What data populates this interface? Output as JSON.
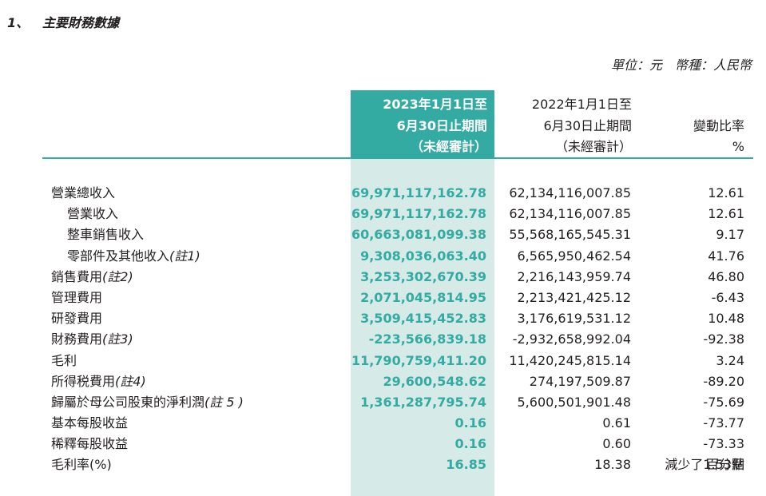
{
  "section": {
    "number": "1、",
    "title": "主要財務數據"
  },
  "unit_line": "單位：元　幣種：人民幣",
  "headers": {
    "current": [
      "2023年1月1日至",
      "6月30日止期間",
      "（未經審計）"
    ],
    "previous": [
      "2022年1月1日至",
      "6月30日止期間",
      "（未經審計）"
    ],
    "change": [
      "變動比率",
      "%"
    ]
  },
  "rows": [
    {
      "label": "營業總收入",
      "note": "",
      "current": "69,971,117,162.78",
      "previous": "62,134,116,007.85",
      "change": "12.61"
    },
    {
      "label": "營業收入",
      "note": "",
      "current": "69,971,117,162.78",
      "previous": "62,134,116,007.85",
      "change": "12.61"
    },
    {
      "label": "整車銷售收入",
      "note": "",
      "current": "60,663,081,099.38",
      "previous": "55,568,165,545.31",
      "change": "9.17"
    },
    {
      "label": "零部件及其他收入",
      "note": "(註1)",
      "current": "9,308,036,063.40",
      "previous": "6,565,950,462.54",
      "change": "41.76"
    },
    {
      "label": "銷售費用",
      "note": "(註2)",
      "current": "3,253,302,670.39",
      "previous": "2,216,143,959.74",
      "change": "46.80"
    },
    {
      "label": "管理費用",
      "note": "",
      "current": "2,071,045,814.95",
      "previous": "2,213,421,425.12",
      "change": "-6.43"
    },
    {
      "label": "研發費用",
      "note": "",
      "current": "3,509,415,452.83",
      "previous": "3,176,619,531.12",
      "change": "10.48"
    },
    {
      "label": "財務費用",
      "note": "(註3)",
      "current": "-223,566,839.18",
      "previous": "-2,932,658,992.04",
      "change": "-92.38"
    },
    {
      "label": "毛利",
      "note": "",
      "current": "11,790,759,411.20",
      "previous": "11,420,245,815.14",
      "change": "3.24"
    },
    {
      "label": "所得税費用",
      "note": "(註4)",
      "current": "29,600,548.62",
      "previous": "274,197,509.87",
      "change": "-89.20"
    },
    {
      "label": "歸屬於母公司股東的淨利潤",
      "note": "(註 5 )",
      "current": "1,361,287,795.74",
      "previous": "5,600,501,901.48",
      "change": "-75.69"
    },
    {
      "label": "基本每股收益",
      "note": "",
      "current": "0.16",
      "previous": "0.61",
      "change": "-73.77"
    },
    {
      "label": "稀釋每股收益",
      "note": "",
      "current": "0.16",
      "previous": "0.60",
      "change": "-73.33"
    },
    {
      "label": "毛利率(%)",
      "note": "",
      "current": "16.85",
      "previous": "18.38",
      "change": "減少了1.53個",
      "change_line2": "百分點"
    }
  ],
  "colors": {
    "accent": "#33aba2",
    "accent_light": "#d6ebe8",
    "text": "#231f20"
  }
}
